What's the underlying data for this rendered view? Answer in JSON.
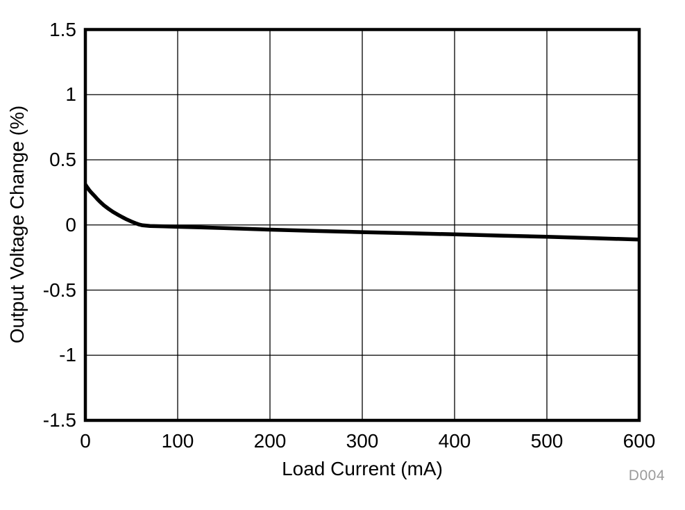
{
  "figure": {
    "watermark": "D004",
    "background_color": "#ffffff"
  },
  "colors": {
    "curve": "#000000",
    "grid": "#000000",
    "frame": "#000000",
    "tick_text": "#000000",
    "watermark": "#9b9b9b"
  },
  "chart_data": {
    "type": "line",
    "title": "",
    "xlabel": "Load Current (mA)",
    "ylabel": "Output Voltage Change (%)",
    "xlim": [
      0,
      600
    ],
    "ylim": [
      -1.5,
      1.5
    ],
    "x_ticks": [
      0,
      100,
      200,
      300,
      400,
      500,
      600
    ],
    "x_tick_labels": [
      "0",
      "100",
      "200",
      "300",
      "400",
      "500",
      "600"
    ],
    "y_ticks": [
      -1.5,
      -1,
      -0.5,
      0,
      0.5,
      1,
      1.5
    ],
    "y_tick_labels": [
      "-1.5",
      "-1",
      "-0.5",
      "0",
      "0.5",
      "1",
      "1.5"
    ],
    "grid": true,
    "legend_position": "none",
    "series": [
      {
        "name": "Output Voltage Change",
        "color": "#000000",
        "points": [
          [
            0,
            0.31
          ],
          [
            1,
            0.3
          ],
          [
            2,
            0.289
          ],
          [
            3,
            0.279
          ],
          [
            4,
            0.269
          ],
          [
            6,
            0.252
          ],
          [
            8,
            0.237
          ],
          [
            10,
            0.222
          ],
          [
            13,
            0.198
          ],
          [
            16,
            0.177
          ],
          [
            20,
            0.151
          ],
          [
            25,
            0.124
          ],
          [
            30,
            0.1
          ],
          [
            35,
            0.079
          ],
          [
            40,
            0.06
          ],
          [
            45,
            0.042
          ],
          [
            50,
            0.026
          ],
          [
            55,
            0.012
          ],
          [
            58,
            0.004
          ],
          [
            62,
            -0.003
          ],
          [
            70,
            -0.008
          ],
          [
            85,
            -0.011
          ],
          [
            100,
            -0.014
          ],
          [
            125,
            -0.019
          ],
          [
            150,
            -0.024
          ],
          [
            175,
            -0.03
          ],
          [
            200,
            -0.036
          ],
          [
            250,
            -0.046
          ],
          [
            300,
            -0.055
          ],
          [
            350,
            -0.063
          ],
          [
            400,
            -0.072
          ],
          [
            450,
            -0.082
          ],
          [
            500,
            -0.091
          ],
          [
            550,
            -0.101
          ],
          [
            600,
            -0.112
          ]
        ]
      }
    ]
  }
}
